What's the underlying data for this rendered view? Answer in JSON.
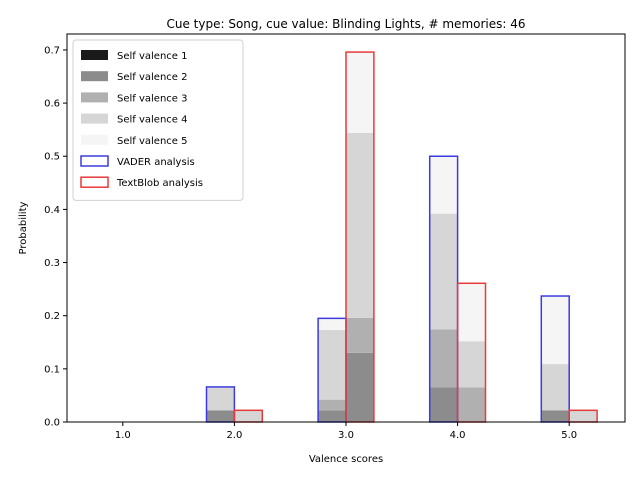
{
  "chart_data": {
    "type": "bar",
    "title": "Cue type: Song, cue value: Blinding Lights, # memories: 46",
    "xlabel": "Valence scores",
    "ylabel": "Probability",
    "categories": [
      "1.0",
      "2.0",
      "3.0",
      "4.0",
      "5.0"
    ],
    "x": [
      1,
      2,
      3,
      4,
      5
    ],
    "ylim": [
      0,
      0.73
    ],
    "yticks": [
      "0.0",
      "0.1",
      "0.2",
      "0.3",
      "0.4",
      "0.5",
      "0.6",
      "0.7"
    ],
    "ytick_values": [
      0,
      0.1,
      0.2,
      0.3,
      0.4,
      0.5,
      0.6,
      0.7
    ],
    "legend_position": "upper left",
    "stacked_series": [
      {
        "name": "Self valence 1",
        "color": "#1a1a1a",
        "vader": [
          0,
          0,
          0,
          0,
          0
        ],
        "textblob": [
          0,
          0,
          0,
          0,
          0
        ]
      },
      {
        "name": "Self valence 2",
        "color": "#8c8c8c",
        "vader": [
          0,
          0.022,
          0.022,
          0.065,
          0.022
        ],
        "textblob": [
          0,
          0,
          0.13,
          0,
          0
        ]
      },
      {
        "name": "Self valence 3",
        "color": "#b0b0b0",
        "vader": [
          0,
          0,
          0.02,
          0.109,
          0
        ],
        "textblob": [
          0,
          0,
          0.066,
          0.065,
          0
        ]
      },
      {
        "name": "Self valence 4",
        "color": "#d6d6d6",
        "vader": [
          0,
          0.044,
          0.131,
          0.218,
          0.087
        ],
        "textblob": [
          0,
          0.022,
          0.348,
          0.087,
          0.022
        ]
      },
      {
        "name": "Self valence 5",
        "color": "#f5f5f5",
        "vader": [
          0,
          0,
          0.022,
          0.108,
          0.128
        ],
        "textblob": [
          0,
          0,
          0.152,
          0.108,
          0
        ]
      }
    ],
    "outline_series": [
      {
        "name": "VADER analysis",
        "color": "#3b3be0",
        "values": [
          0,
          0.066,
          0.195,
          0.5,
          0.237
        ]
      },
      {
        "name": "TextBlob analysis",
        "color": "#e83a3a",
        "values": [
          0,
          0.022,
          0.696,
          0.261,
          0.022
        ]
      }
    ]
  }
}
